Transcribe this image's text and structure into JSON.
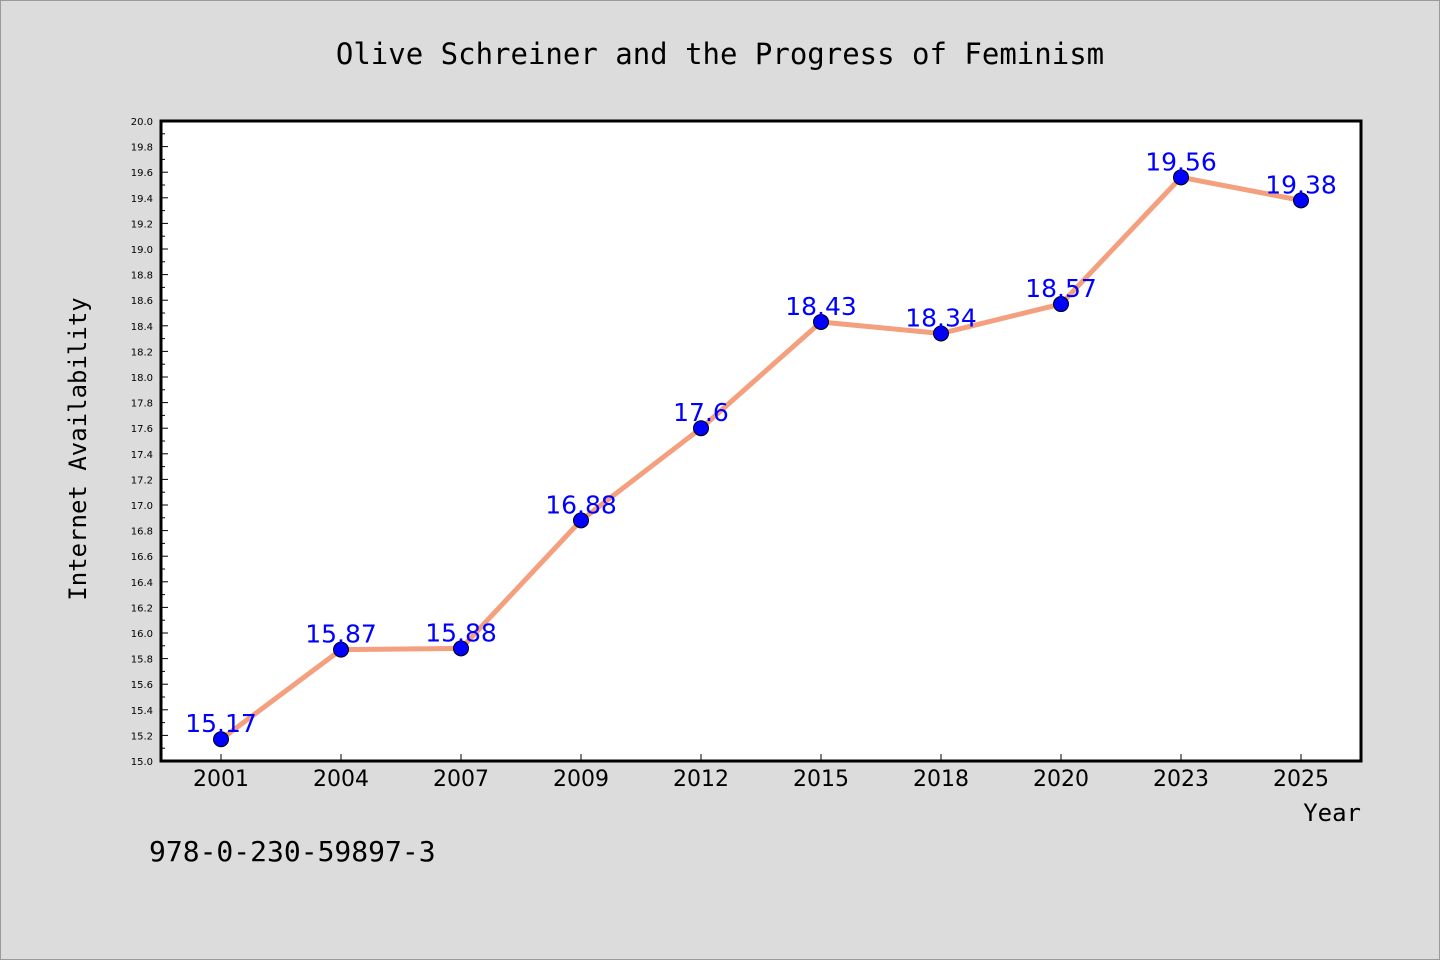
{
  "chart_data": {
    "type": "line",
    "title": "Olive Schreiner and the Progress of Feminism",
    "xlabel": "Year",
    "ylabel": "Internet Availability",
    "categories": [
      "2001",
      "2004",
      "2007",
      "2009",
      "2012",
      "2015",
      "2018",
      "2020",
      "2023",
      "2025"
    ],
    "series": [
      {
        "values": [
          15.17,
          15.87,
          15.88,
          16.88,
          17.6,
          18.43,
          18.34,
          18.57,
          19.56,
          19.38
        ],
        "labels": [
          "15.17",
          "15.87",
          "15.88",
          "16.88",
          "17.6",
          "18.43",
          "18.34",
          "18.57",
          "19.56",
          "19.38"
        ],
        "line_color": "#f4a07e",
        "marker_color": "#0000ff"
      }
    ],
    "ylim": [
      15.0,
      20.0
    ],
    "ytick_step": 0.2,
    "grid": false,
    "legend": "none"
  },
  "footer": {
    "isbn": "978-0-230-59897-3"
  }
}
